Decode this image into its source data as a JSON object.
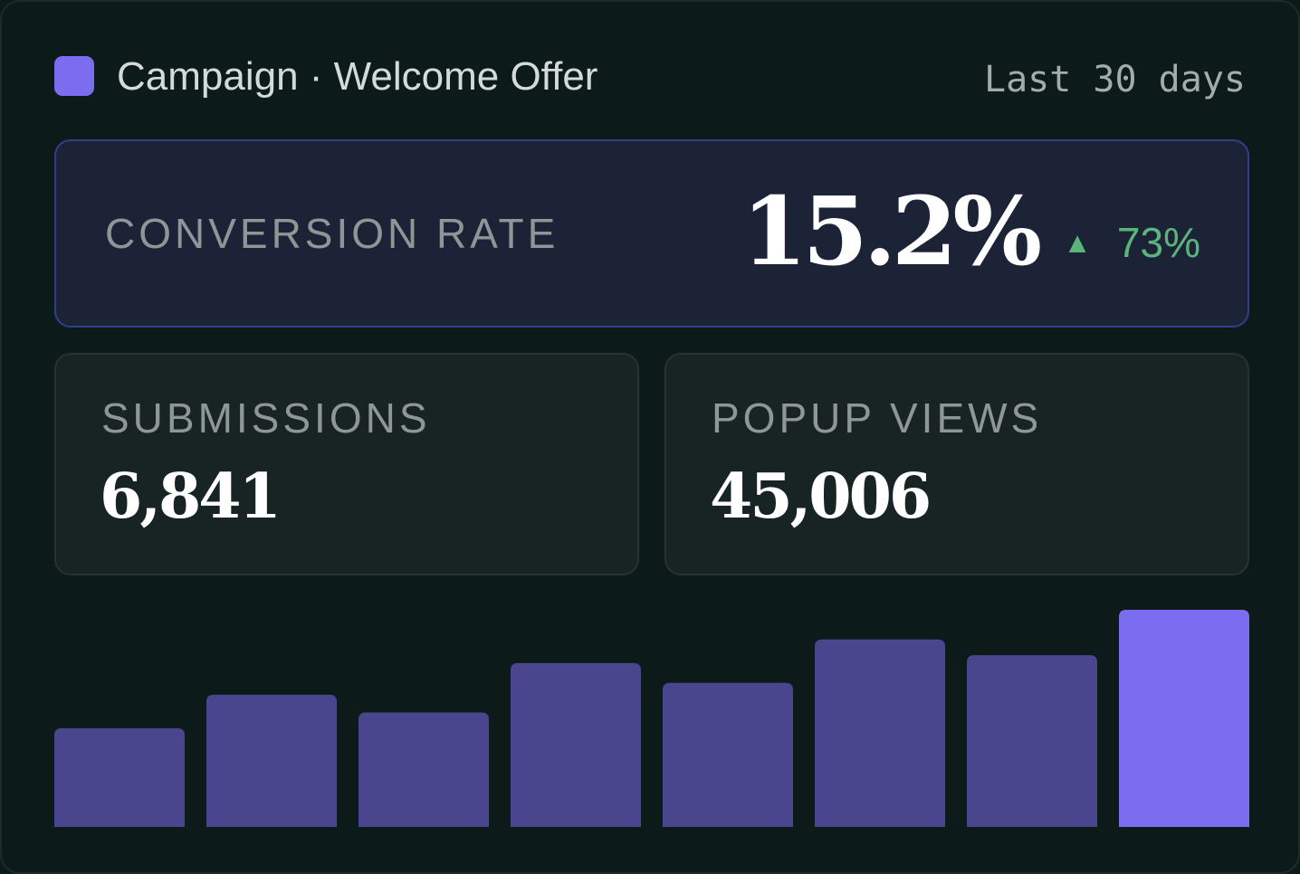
{
  "header": {
    "title": "Campaign · Welcome Offer",
    "range": "Last 30 days"
  },
  "hero": {
    "label": "CONVERSION RATE",
    "value": "15.2%",
    "delta": "73%",
    "delta_direction": "up"
  },
  "stats": [
    {
      "label": "SUBMISSIONS",
      "value": "6,841"
    },
    {
      "label": "POPUP VIEWS",
      "value": "45,006"
    }
  ],
  "colors": {
    "accent": "#7b6cf0",
    "bar": "#4a468e",
    "positive": "#5ab57a",
    "background": "#0d1a1a"
  },
  "chart_data": {
    "type": "bar",
    "values": [
      100,
      134,
      116,
      166,
      146,
      190,
      174,
      220
    ],
    "highlight_last": true,
    "ylim": [
      0,
      220
    ]
  }
}
